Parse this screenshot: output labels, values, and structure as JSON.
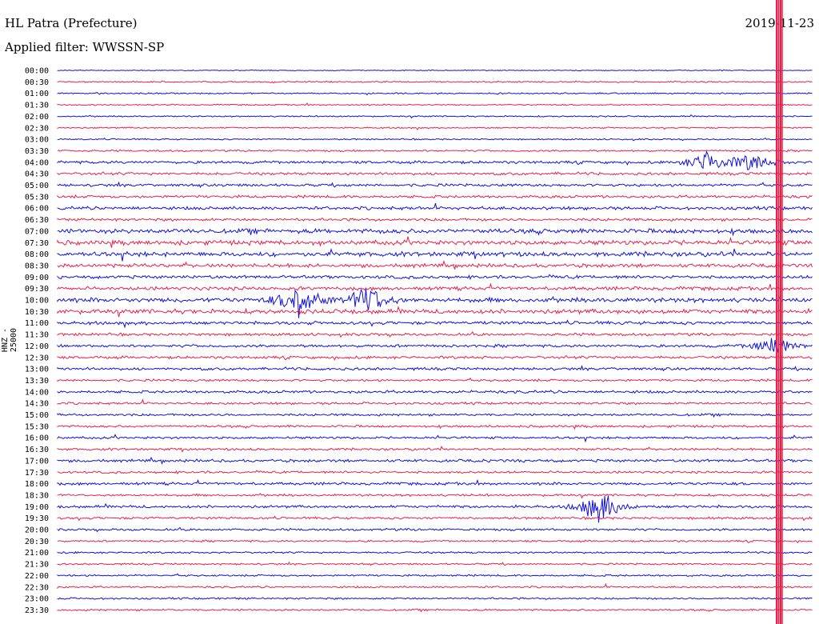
{
  "header": {
    "station": "HL Patra (Prefecture)",
    "filter": "Applied filter: WWSSN-SP",
    "date": "2019-11-23"
  },
  "chart_data": {
    "type": "line",
    "title": "HL Patra (Prefecture)",
    "subtitle": "Applied filter: WWSSN-SP",
    "date": "2019-11-23",
    "ylabel": "HNZ - 25000",
    "categories": [
      "00:00",
      "00:30",
      "01:00",
      "01:30",
      "02:00",
      "02:30",
      "03:00",
      "03:30",
      "04:00",
      "04:30",
      "05:00",
      "05:30",
      "06:00",
      "06:30",
      "07:00",
      "07:30",
      "08:00",
      "08:30",
      "09:00",
      "09:30",
      "10:00",
      "10:30",
      "11:00",
      "11:30",
      "12:00",
      "12:30",
      "13:00",
      "13:30",
      "14:00",
      "14:30",
      "15:00",
      "15:30",
      "16:00",
      "16:30",
      "17:00",
      "17:30",
      "18:00",
      "18:30",
      "19:00",
      "19:30",
      "20:00",
      "20:30",
      "21:00",
      "21:30",
      "22:00",
      "22:30",
      "23:00",
      "23:30"
    ],
    "colors": [
      "#1010e0",
      "#e8204a"
    ],
    "trace_amplitude_level": [
      0.2,
      0.3,
      0.3,
      0.3,
      0.3,
      0.3,
      0.3,
      0.4,
      0.6,
      0.6,
      0.6,
      0.6,
      0.7,
      0.6,
      1.0,
      1.0,
      1.0,
      0.8,
      0.7,
      0.8,
      1.0,
      1.0,
      0.7,
      0.6,
      0.6,
      0.6,
      0.6,
      0.5,
      0.6,
      0.5,
      0.5,
      0.5,
      0.5,
      0.5,
      0.6,
      0.5,
      0.6,
      0.5,
      0.6,
      0.5,
      0.5,
      0.4,
      0.4,
      0.4,
      0.4,
      0.4,
      0.4,
      0.4
    ],
    "event_bursts": [
      {
        "row": "04:00",
        "time_fraction": 0.86,
        "strength": 1.0
      },
      {
        "row": "04:00",
        "time_fraction": 0.92,
        "strength": 0.9
      },
      {
        "row": "10:00",
        "time_fraction": 0.32,
        "strength": 1.6
      },
      {
        "row": "10:00",
        "time_fraction": 0.41,
        "strength": 1.4
      },
      {
        "row": "12:00",
        "time_fraction": 0.95,
        "strength": 0.9
      },
      {
        "row": "19:00",
        "time_fraction": 0.72,
        "strength": 1.6
      }
    ],
    "saturated_span": {
      "time_fraction": 0.956,
      "from_row": "00:00",
      "to_row": "23:30"
    },
    "grid": false
  }
}
